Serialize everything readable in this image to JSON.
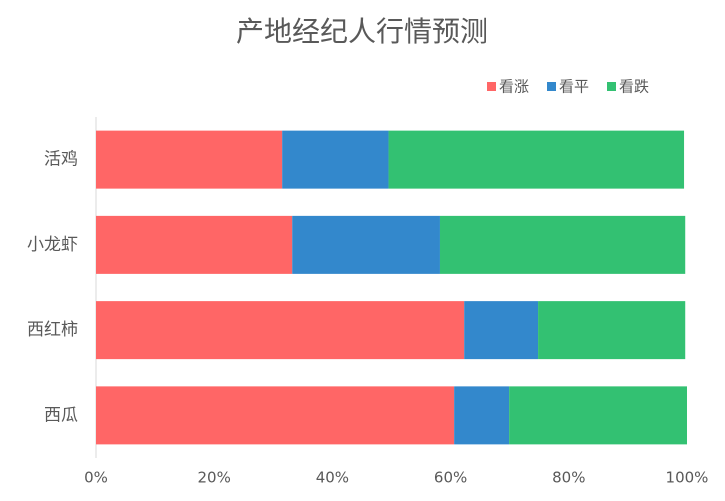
{
  "chart_data": {
    "type": "stacked_bar_horizontal",
    "title": "产地经纪人行情预测",
    "categories": [
      "活鸡",
      "小龙虾",
      "西红柿",
      "西瓜"
    ],
    "series": [
      {
        "name": "看涨",
        "color": "#ff6666",
        "values": [
          31.5,
          33.2,
          62.3,
          60.6
        ]
      },
      {
        "name": "看平",
        "color": "#3388cc",
        "values": [
          18,
          25,
          12.5,
          9.3
        ]
      },
      {
        "name": "看跌",
        "color": "#33c172",
        "values": [
          50,
          41.5,
          24.9,
          30.1
        ]
      }
    ],
    "xlim": [
      0,
      100
    ],
    "xticks": [
      {
        "value": 0,
        "label": "0%"
      },
      {
        "value": 20,
        "label": "20%"
      },
      {
        "value": 40,
        "label": "40%"
      },
      {
        "value": 60,
        "label": "60%"
      },
      {
        "value": 80,
        "label": "80%"
      },
      {
        "value": 100,
        "label": "100%"
      }
    ],
    "legend": "top-right"
  }
}
